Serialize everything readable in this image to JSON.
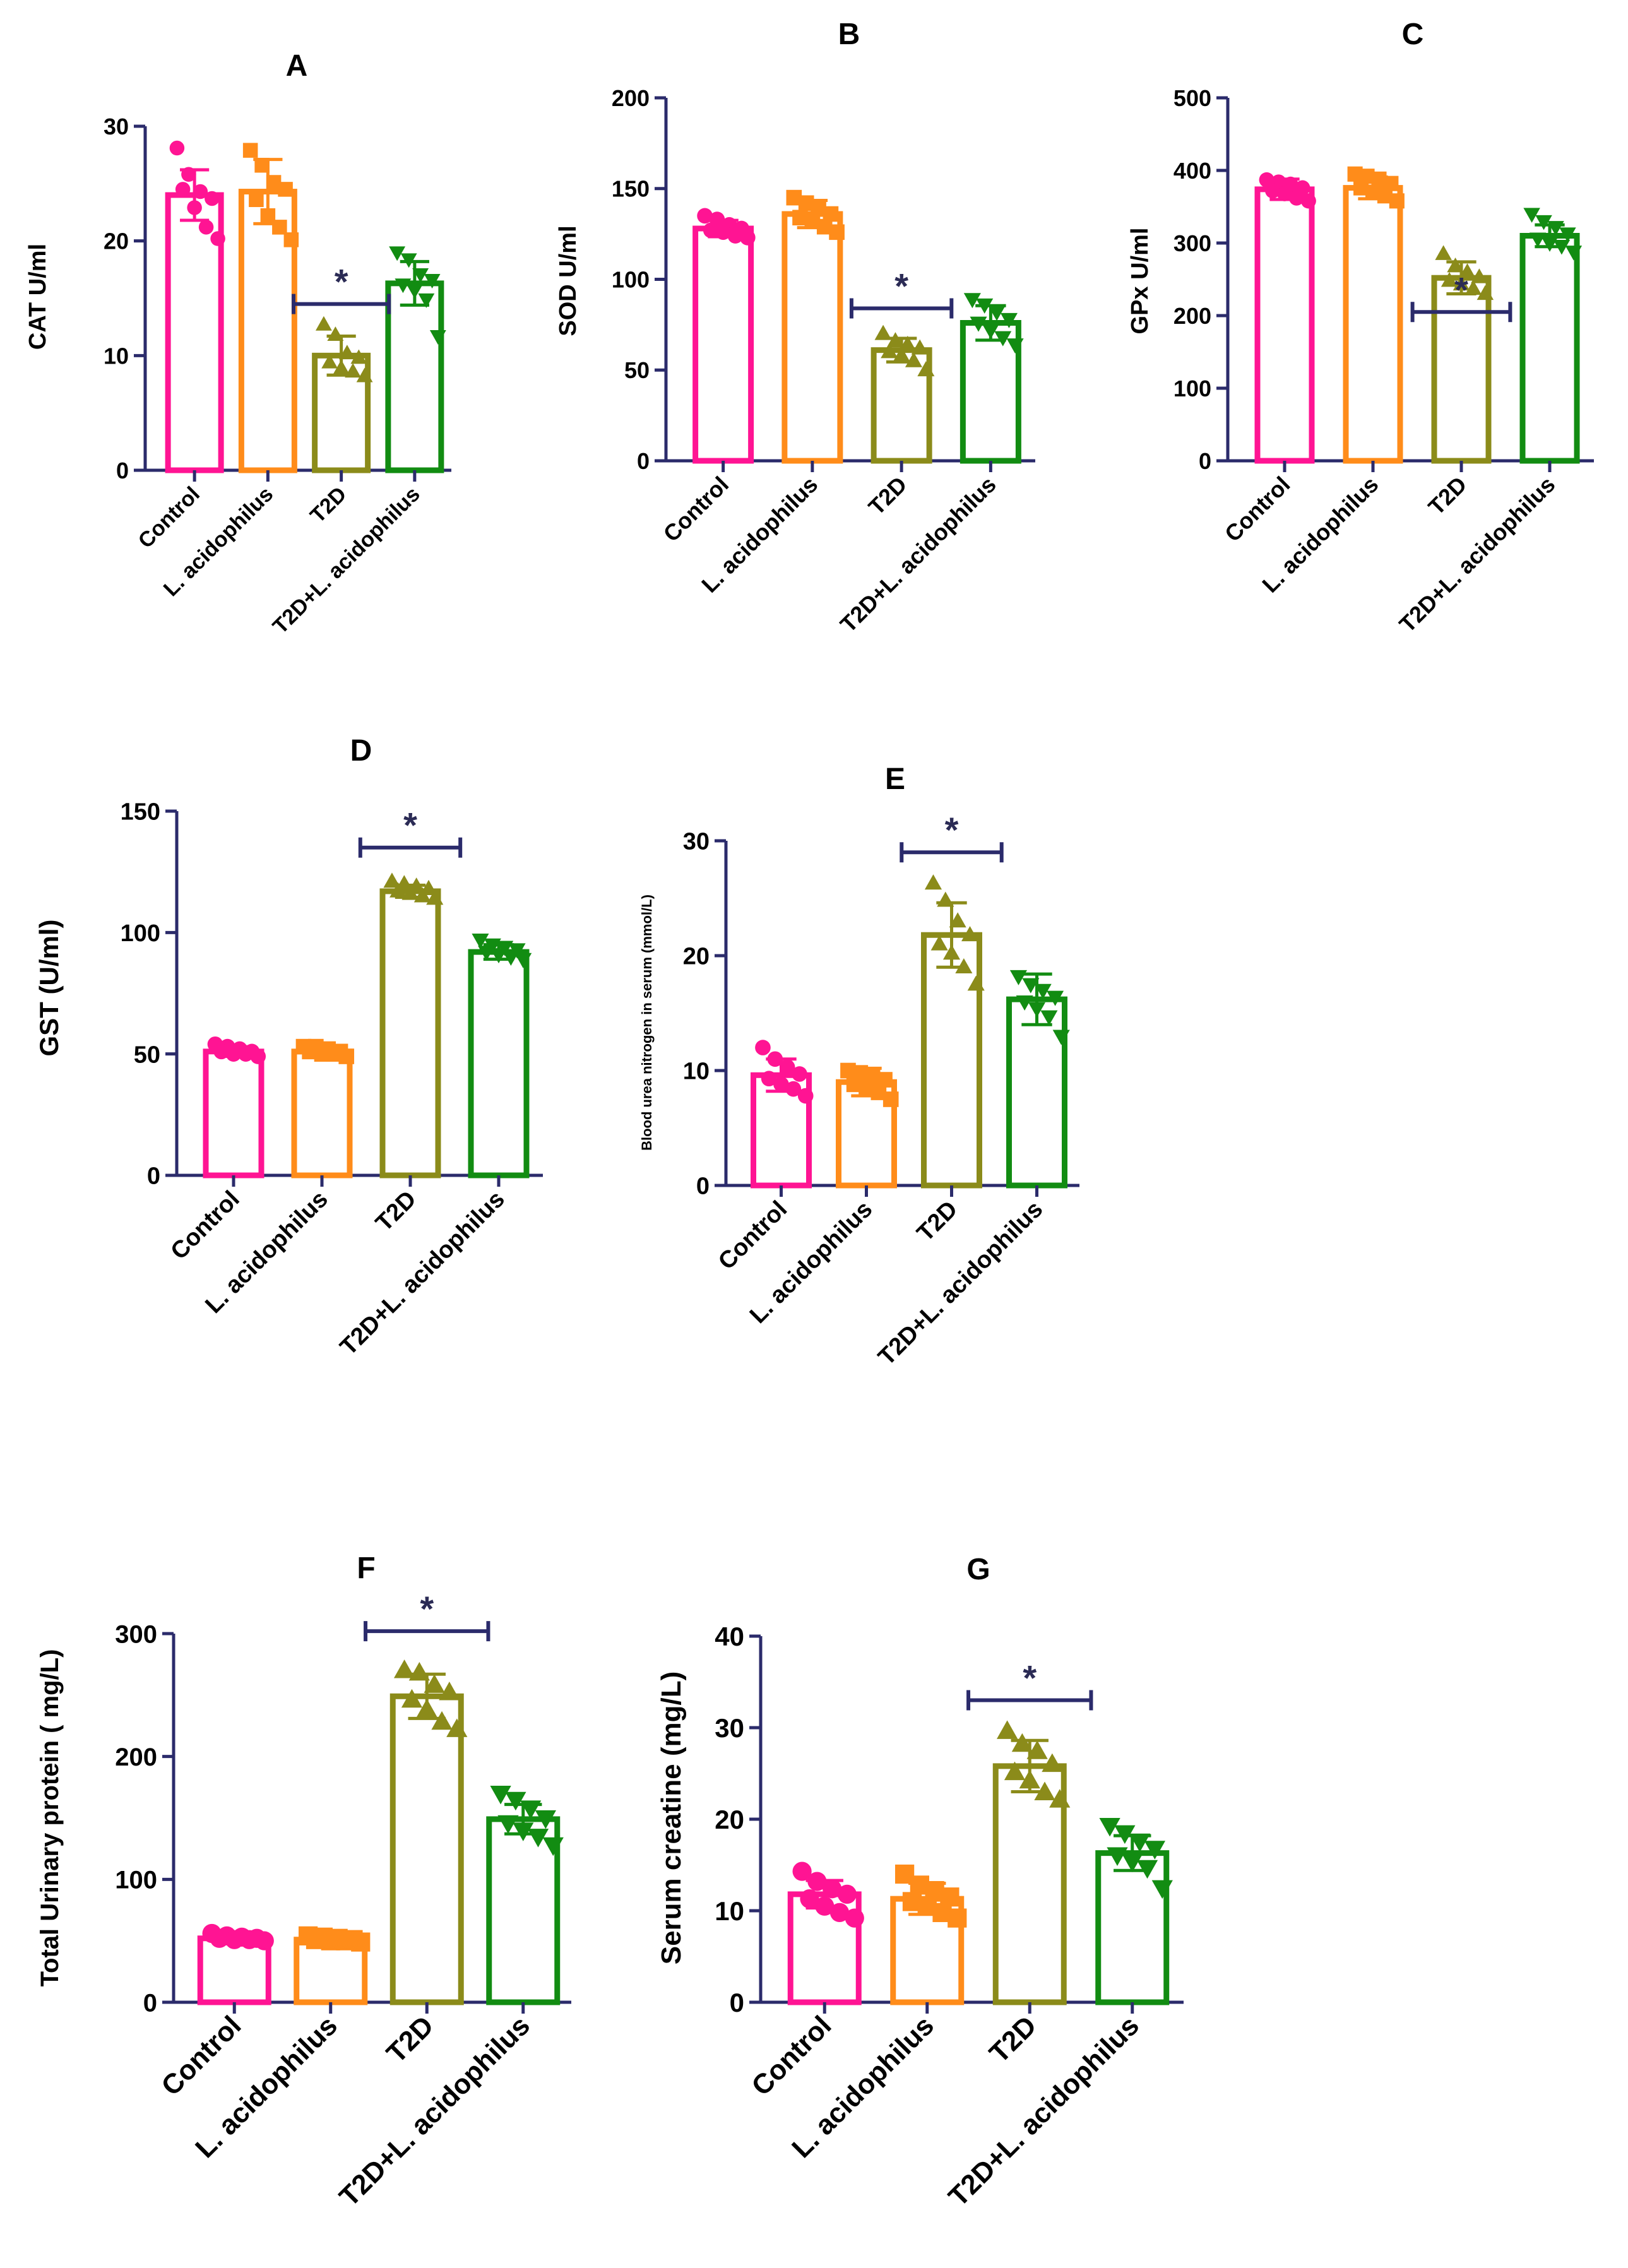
{
  "figure": {
    "categories": [
      "Control",
      "L. acidophilus",
      "T2D",
      "T2D+L. acidophilus"
    ],
    "colors": [
      "#ff1493",
      "#ff8c1a",
      "#8b8b1a",
      "#128c12"
    ],
    "axis_color": "#2b2b6b",
    "markers": [
      "circle",
      "square",
      "triangle-up",
      "triangle-down"
    ]
  },
  "chart_data": [
    {
      "type": "bar",
      "panel": "A",
      "title": "A",
      "ylabel": "CAT U/ml",
      "categories": [
        "Control",
        "L. acidophilus",
        "T2D",
        "T2D+L. acidophilus"
      ],
      "ylim": [
        0,
        30
      ],
      "yticks": [
        0,
        10,
        20,
        30
      ],
      "values": [
        24,
        24.3,
        10,
        16.3
      ],
      "errors": [
        2.2,
        2.8,
        1.7,
        1.9
      ],
      "points": [
        [
          28.1,
          25.8,
          24.3,
          23.7,
          24.5,
          22.9,
          21.2,
          20.2
        ],
        [
          27.9,
          26.6,
          25.1,
          24.5,
          23.6,
          22.2,
          21.2,
          20.1
        ],
        [
          12.7,
          11.8,
          10.2,
          9.8,
          9.4,
          8.9,
          8.6,
          8.2
        ],
        [
          19.0,
          18.4,
          17.1,
          16.6,
          16.2,
          15.7,
          14.9,
          11.7
        ]
      ],
      "significance": {
        "index": 2,
        "label": "*",
        "y": 14.5
      }
    },
    {
      "type": "bar",
      "panel": "B",
      "title": "B",
      "ylabel": "SOD U/ml",
      "categories": [
        "Control",
        "L. acidophilus",
        "T2D",
        "T2D+L. acidophilus"
      ],
      "ylim": [
        0,
        200
      ],
      "yticks": [
        0,
        50,
        100,
        150,
        200
      ],
      "values": [
        128,
        136,
        61,
        76
      ],
      "errors": [
        4.5,
        7.5,
        6.5,
        9.5
      ],
      "points": [
        [
          135,
          133,
          130,
          128,
          127,
          126,
          124,
          123
        ],
        [
          145,
          142,
          139,
          136,
          134,
          132,
          129,
          126
        ],
        [
          70,
          66,
          64,
          62,
          60,
          58,
          55,
          50
        ],
        [
          89,
          86,
          82,
          78,
          76,
          72,
          68,
          64
        ]
      ],
      "significance": {
        "index": 2,
        "label": "*",
        "y": 84
      }
    },
    {
      "type": "bar",
      "panel": "C",
      "title": "C",
      "ylabel": "GPx U/ml",
      "categories": [
        "Control",
        "L. acidophilus",
        "T2D",
        "T2D+L. acidophilus"
      ],
      "ylim": [
        0,
        500
      ],
      "yticks": [
        0,
        100,
        200,
        300,
        400,
        500
      ],
      "values": [
        374,
        376,
        252,
        310
      ],
      "errors": [
        14,
        15,
        22,
        15
      ],
      "points": [
        [
          387,
          384,
          381,
          376,
          372,
          368,
          362,
          358
        ],
        [
          395,
          392,
          388,
          382,
          376,
          370,
          365,
          358
        ],
        [
          285,
          268,
          260,
          253,
          248,
          243,
          237,
          230
        ],
        [
          340,
          330,
          322,
          313,
          306,
          300,
          296,
          288
        ]
      ],
      "significance": {
        "index": 2,
        "label": "*",
        "y": 205
      }
    },
    {
      "type": "bar",
      "panel": "D",
      "title": "D",
      "ylabel": "GST (U/ml)",
      "categories": [
        "Control",
        "L. acidophilus",
        "T2D",
        "T2D+L. acidophilus"
      ],
      "ylim": [
        0,
        150
      ],
      "yticks": [
        0,
        50,
        100,
        150
      ],
      "values": [
        51,
        51,
        117,
        92
      ],
      "errors": [
        2,
        2.5,
        2.5,
        3
      ],
      "points": [
        [
          54,
          53,
          52,
          51,
          51,
          50,
          50,
          49
        ],
        [
          53,
          53,
          52,
          51,
          51,
          50,
          50,
          49
        ],
        [
          121,
          120,
          119,
          118,
          117,
          116,
          115,
          114
        ],
        [
          97,
          95,
          94,
          93,
          92,
          91,
          90,
          89
        ]
      ],
      "significance": {
        "index": 2,
        "label": "*",
        "y": 135
      }
    },
    {
      "type": "bar",
      "panel": "E",
      "title": "E",
      "ylabel": "Blood urea nitrogen in serum (mmol/L)",
      "categories": [
        "Control",
        "L. acidophilus",
        "T2D",
        "T2D+L. acidophilus"
      ],
      "ylim": [
        0,
        30
      ],
      "yticks": [
        0,
        10,
        20,
        30
      ],
      "values": [
        9.6,
        9,
        21.8,
        16.2
      ],
      "errors": [
        1.4,
        1.2,
        2.8,
        2.2
      ],
      "points": [
        [
          12,
          11,
          10.3,
          9.7,
          9.3,
          8.8,
          8.4,
          7.8
        ],
        [
          10,
          9.8,
          9.5,
          9.2,
          8.8,
          8.5,
          8.1,
          7.5
        ],
        [
          26.3,
          24.8,
          23,
          21.8,
          21,
          20.2,
          19,
          17.5
        ],
        [
          18.2,
          17.5,
          17,
          16.4,
          16,
          15.4,
          14.7,
          13
        ]
      ],
      "significance": {
        "index": 2,
        "label": "*",
        "y": 29
      }
    },
    {
      "type": "bar",
      "panel": "F",
      "title": "F",
      "ylabel": "Total Urinary protein ( mg/L)",
      "categories": [
        "Control",
        "L. acidophilus",
        "T2D",
        "T2D+L. acidophilus"
      ],
      "ylim": [
        0,
        300
      ],
      "yticks": [
        0,
        100,
        200,
        300
      ],
      "values": [
        52,
        51,
        249,
        149
      ],
      "errors": [
        2,
        2,
        18,
        12
      ],
      "points": [
        [
          56,
          54,
          53,
          52,
          52,
          51,
          51,
          50
        ],
        [
          54,
          53,
          52,
          51,
          51,
          50,
          50,
          49
        ],
        [
          270,
          268,
          258,
          252,
          246,
          238,
          228,
          222
        ],
        [
          170,
          165,
          158,
          150,
          146,
          140,
          135,
          128
        ]
      ],
      "significance": {
        "index": 2,
        "label": "*",
        "y": 302
      }
    },
    {
      "type": "bar",
      "panel": "G",
      "title": "G",
      "ylabel": "Serum creatine (mg/L)",
      "categories": [
        "Control",
        "L. acidophilus",
        "T2D",
        "T2D+L. acidophilus"
      ],
      "ylim": [
        0,
        40
      ],
      "yticks": [
        0,
        10,
        20,
        30,
        40
      ],
      "values": [
        11.8,
        11.3,
        25.8,
        16.3
      ],
      "errors": [
        1.5,
        1.7,
        2.8,
        1.9
      ],
      "points": [
        [
          14.3,
          13.2,
          12.4,
          11.8,
          11.3,
          10.5,
          9.8,
          9.2
        ],
        [
          14,
          12.8,
          12.2,
          11.5,
          11,
          10.5,
          9.8,
          9.2
        ],
        [
          29.6,
          28.2,
          27.4,
          26,
          25.1,
          24.2,
          22.9,
          22.1
        ],
        [
          19.3,
          18.5,
          17.6,
          16.8,
          16.1,
          15.4,
          14.7,
          12.5
        ]
      ],
      "significance": {
        "index": 2,
        "label": "*",
        "y": 33
      }
    }
  ]
}
